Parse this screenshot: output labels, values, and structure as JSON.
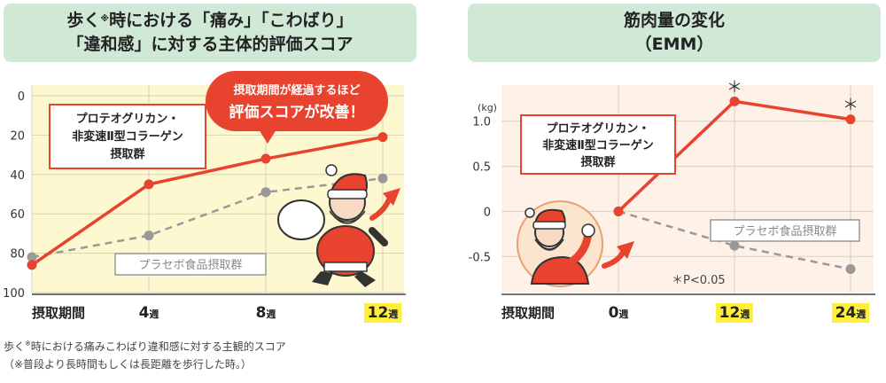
{
  "left": {
    "title_line1_pre": "歩く",
    "title_line1_mark": "※",
    "title_line1_post": "時における「痛み」「こわばり」",
    "title_line2": "「違和感」に対する主体的評価スコア",
    "legend_treat": [
      "プロテオグリカン・",
      "非変速Ⅱ型コラーゲン",
      "摂取群"
    ],
    "legend_placebo": "プラセボ食品摂取群",
    "callout": [
      "摂取期間が経過するほど",
      "評価スコアが改善！"
    ],
    "x_axis_title": "摂取期間",
    "footnote_pre": "歩く",
    "footnote_mark": "※",
    "footnote_post": "時における痛みこわばり違和感に対する主観的スコア",
    "footnote_line2": "（※普段より長時間もしくは長距離を歩行した時。）"
  },
  "right": {
    "title_line1": "筋肉量の変化",
    "title_line2": "（EMM）",
    "y_unit": "(kg)",
    "legend_treat": [
      "プロテオグリカン・",
      "非変速Ⅱ型コラーゲン",
      "摂取群"
    ],
    "legend_placebo": "プラセボ食品摂取群",
    "significance_note": "＊P<0.05",
    "x_axis_title": "摂取期間"
  },
  "colors": {
    "treatment": "#e8432e",
    "placebo": "#999999",
    "title_bg": "#cfe9d6",
    "plot_bg_left": "#fdf8d0",
    "plot_bg_right": "#fdf1e8",
    "highlight": "#ffef3a"
  },
  "chart_data": [
    {
      "type": "line",
      "x_labels": [
        "",
        "4週",
        "8週",
        "12週"
      ],
      "x": [
        0,
        4,
        8,
        12
      ],
      "ylim": [
        100,
        0
      ],
      "y_ticks": [
        0,
        20,
        40,
        60,
        80,
        100
      ],
      "series": [
        {
          "name": "プロテオグリカン・非変速Ⅱ型コラーゲン摂取群",
          "values": [
            86,
            45,
            32,
            21
          ]
        },
        {
          "name": "プラセボ食品摂取群",
          "values": [
            82,
            71,
            49,
            42
          ]
        }
      ],
      "highlight_tick": "12週"
    },
    {
      "type": "line",
      "x_labels": [
        "0週",
        "12週",
        "24週"
      ],
      "x": [
        0,
        12,
        24
      ],
      "ylim": [
        -0.9,
        1.4
      ],
      "y_ticks": [
        1.0,
        0.5,
        0,
        -0.5
      ],
      "y_tick_labels": [
        "1.0",
        "0.5",
        "0",
        "-0.5"
      ],
      "series": [
        {
          "name": "プロテオグリカン・非変速Ⅱ型コラーゲン摂取群",
          "values": [
            0,
            1.22,
            1.02
          ],
          "significant": [
            "",
            "＊",
            "＊"
          ]
        },
        {
          "name": "プラセボ食品摂取群",
          "values": [
            0,
            -0.38,
            -0.64
          ]
        }
      ],
      "highlight_ticks": [
        "12週",
        "24週"
      ]
    }
  ]
}
